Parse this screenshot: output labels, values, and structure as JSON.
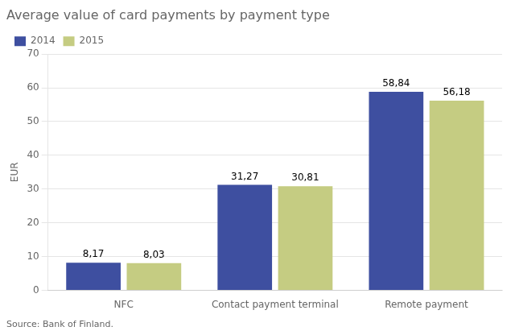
{
  "chart_data": {
    "type": "bar",
    "title": "Average value of card payments by payment type",
    "ylabel": "EUR",
    "annotations": [
      "Source: Bank of Finland."
    ],
    "categories": [
      "NFC",
      "Contact payment terminal",
      "Remote payment"
    ],
    "series": [
      {
        "name": "2014",
        "color": "#3E4FA0",
        "values": [
          8.17,
          31.27,
          58.84
        ],
        "value_labels": [
          "8,17",
          "31,27",
          "58,84"
        ]
      },
      {
        "name": "2015",
        "color": "#C5CC82",
        "values": [
          8.03,
          30.81,
          56.18
        ],
        "value_labels": [
          "8,03",
          "30,81",
          "56,18"
        ]
      }
    ],
    "ylim": [
      0,
      70
    ],
    "yticks": [
      0,
      10,
      20,
      30,
      40,
      50,
      60,
      70
    ],
    "grid": "y",
    "legend": "upper left",
    "data_labels": true
  }
}
